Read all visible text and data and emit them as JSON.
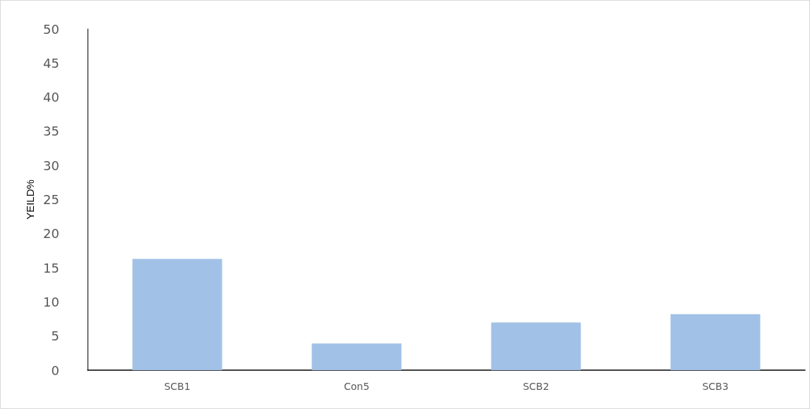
{
  "chart_data": {
    "type": "bar",
    "ylabel": "YEILD%",
    "categories": [
      "SCB1",
      "Con5",
      "SCB2",
      "SCB3"
    ],
    "values": [
      16.3,
      3.9,
      7.0,
      8.2
    ],
    "color": "#a2c1e7",
    "ylim": [
      0,
      50
    ],
    "yticks": [
      0,
      5,
      10,
      15,
      20,
      25,
      30,
      35,
      40,
      45,
      50
    ],
    "grid": false
  }
}
